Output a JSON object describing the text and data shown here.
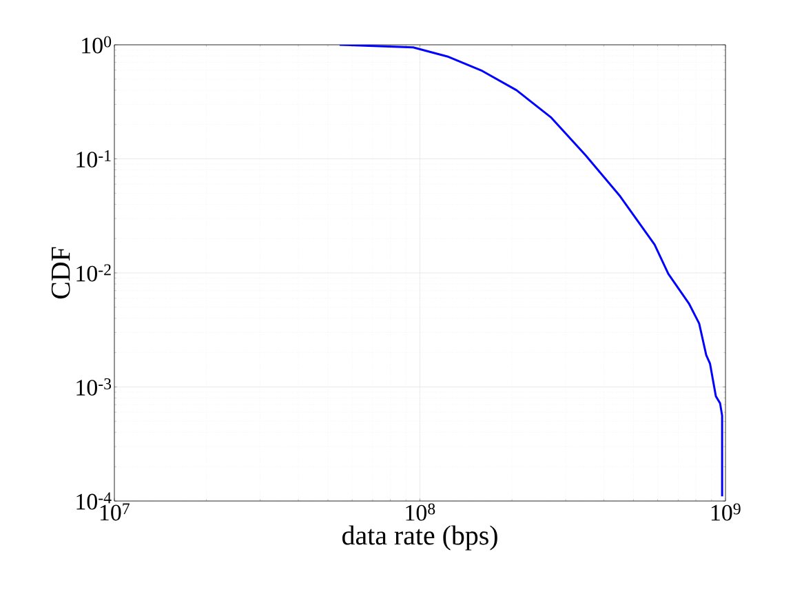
{
  "chart_data": {
    "type": "line",
    "xlabel": "data rate (bps)",
    "ylabel": "CDF",
    "log": "xy",
    "grid": true,
    "marker": "none",
    "line_style": "solid",
    "xlim": [
      10000000,
      1000000000
    ],
    "xticks": [
      {
        "value": 10000000,
        "label": "10$^{7}$"
      },
      {
        "value": 100000000,
        "label": "10$^{8}$"
      },
      {
        "value": 1000000000,
        "label": "10$^{9}$"
      }
    ],
    "ylim": [
      0.0001,
      1
    ],
    "yticks": [
      {
        "value": 0.0001,
        "label": "10$^{-4}$"
      },
      {
        "value": 0.001,
        "label": "10$^{-3}$"
      },
      {
        "value": 0.01,
        "label": "10$^{-2}$"
      },
      {
        "value": 0.1,
        "label": "10$^{-1}$"
      },
      {
        "value": 1,
        "label": "10$^{0}$"
      }
    ],
    "series": [
      {
        "color": "#0000ff",
        "x": [
          54600000,
          95000000,
          123000000,
          160000000,
          207000000,
          269000000,
          348000000,
          452000000,
          586000000,
          650000000,
          759000000,
          820000000,
          865000000,
          890000000,
          930000000,
          960000000,
          975000000,
          975000000
        ],
        "values": [
          1,
          0.95,
          0.79,
          0.59,
          0.4,
          0.23,
          0.108,
          0.047,
          0.0177,
          0.0098,
          0.0054,
          0.0036,
          0.0019,
          0.0016,
          0.00083,
          0.00072,
          0.00056,
          0.00011
        ]
      }
    ]
  }
}
